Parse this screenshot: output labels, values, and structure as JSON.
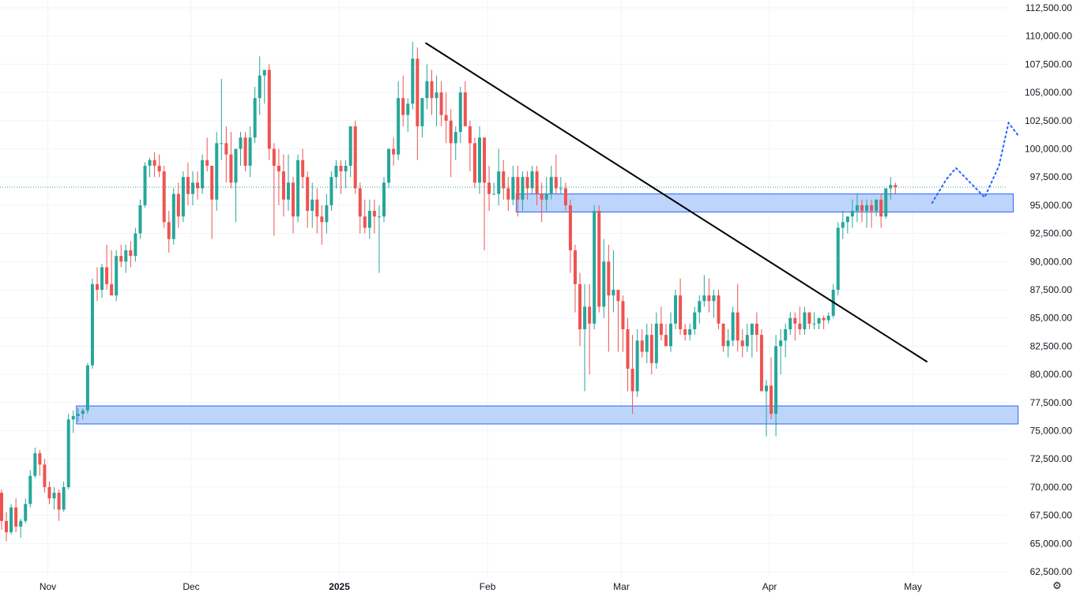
{
  "chart_data": {
    "type": "candlestick",
    "ylim": [
      61500,
      113000
    ],
    "y_ticks": [
      112500,
      110000,
      107500,
      105000,
      102500,
      100000,
      97500,
      95000,
      92500,
      90000,
      87500,
      85000,
      82500,
      80000,
      77500,
      75000,
      72500,
      70000,
      67500,
      65000,
      62500
    ],
    "y_tick_labels": [
      "112,500.00",
      "110,000.00",
      "107,500.00",
      "105,000.00",
      "102,500.00",
      "100,000.00",
      "97,500.00",
      "95,000.00",
      "92,500.00",
      "90,000.00",
      "87,500.00",
      "85,000.00",
      "82,500.00",
      "80,000.00",
      "77,500.00",
      "75,000.00",
      "72,500.00",
      "70,000.00",
      "67,500.00",
      "65,000.00",
      "62,500.00"
    ],
    "x_ticks": [
      {
        "label": "Nov",
        "index": 10,
        "bold": false
      },
      {
        "label": "Dec",
        "index": 40,
        "bold": false
      },
      {
        "label": "2025",
        "index": 71,
        "bold": true
      },
      {
        "label": "Feb",
        "index": 102,
        "bold": false
      },
      {
        "label": "Mar",
        "index": 130,
        "bold": false
      },
      {
        "label": "Apr",
        "index": 161,
        "bold": false
      },
      {
        "label": "May",
        "index": 191,
        "bold": false
      }
    ],
    "last_price": 96600,
    "colors": {
      "up": "#26a69a",
      "down": "#ef5350",
      "zone_fill": "#bbd3fb",
      "zone_border": "#2962ff",
      "trendline": "#000000",
      "projection": "#2962ff",
      "price_line": "#26a69a",
      "grid": "#f0f3fa"
    },
    "candles": [
      [
        69500,
        69800,
        66200,
        67000
      ],
      [
        67000,
        67800,
        65200,
        66000
      ],
      [
        66000,
        68500,
        65800,
        68200
      ],
      [
        68200,
        69000,
        66000,
        66500
      ],
      [
        66500,
        67200,
        65500,
        67000
      ],
      [
        67000,
        69000,
        66800,
        68500
      ],
      [
        68500,
        71500,
        68200,
        71000
      ],
      [
        71000,
        73500,
        70800,
        73000
      ],
      [
        73000,
        73300,
        71000,
        72000
      ],
      [
        72000,
        72500,
        69500,
        70000
      ],
      [
        70000,
        70500,
        68500,
        69000
      ],
      [
        69000,
        70000,
        68000,
        69500
      ],
      [
        69500,
        69800,
        67000,
        68000
      ],
      [
        68000,
        70500,
        67800,
        70000
      ],
      [
        70000,
        76500,
        69800,
        76000
      ],
      [
        76000,
        76800,
        74800,
        76300
      ],
      [
        76300,
        77000,
        75800,
        76500
      ],
      [
        76500,
        77000,
        76000,
        76800
      ],
      [
        76800,
        81000,
        76500,
        80800
      ],
      [
        80800,
        88500,
        80500,
        88000
      ],
      [
        88000,
        89500,
        86500,
        87500
      ],
      [
        87500,
        89800,
        86800,
        89500
      ],
      [
        89500,
        91500,
        87500,
        88000
      ],
      [
        88000,
        91000,
        87000,
        87000
      ],
      [
        87000,
        91000,
        86500,
        90500
      ],
      [
        90500,
        91500,
        89500,
        90000
      ],
      [
        90000,
        91500,
        89000,
        91000
      ],
      [
        91000,
        91800,
        89500,
        90500
      ],
      [
        90500,
        93000,
        90000,
        92500
      ],
      [
        92500,
        95500,
        92000,
        95000
      ],
      [
        95000,
        98800,
        94800,
        98500
      ],
      [
        98500,
        99200,
        97500,
        99000
      ],
      [
        99000,
        99700,
        97500,
        98500
      ],
      [
        98500,
        99500,
        97500,
        98000
      ],
      [
        98000,
        98500,
        93000,
        93500
      ],
      [
        93500,
        94500,
        90800,
        92000
      ],
      [
        92000,
        96500,
        91500,
        96000
      ],
      [
        96000,
        97000,
        93000,
        94000
      ],
      [
        94000,
        98000,
        93500,
        97500
      ],
      [
        97500,
        98800,
        95000,
        96000
      ],
      [
        96000,
        98000,
        95000,
        97000
      ],
      [
        97000,
        98000,
        95500,
        96500
      ],
      [
        96500,
        99500,
        96000,
        99000
      ],
      [
        99000,
        101000,
        98000,
        98500
      ],
      [
        98500,
        98500,
        92000,
        95500
      ],
      [
        95500,
        101500,
        94500,
        100500
      ],
      [
        100500,
        106200,
        99000,
        100500
      ],
      [
        100500,
        102000,
        97000,
        99500
      ],
      [
        99500,
        101500,
        96500,
        97000
      ],
      [
        97000,
        100000,
        93500,
        100000
      ],
      [
        100000,
        101500,
        98500,
        101000
      ],
      [
        101000,
        101500,
        98000,
        98500
      ],
      [
        98500,
        102000,
        97500,
        101000
      ],
      [
        101000,
        105500,
        100500,
        104500
      ],
      [
        104500,
        108200,
        103000,
        106500
      ],
      [
        106500,
        107000,
        104000,
        107000
      ],
      [
        107000,
        107500,
        99000,
        100000
      ],
      [
        100000,
        100500,
        92300,
        98500
      ],
      [
        98500,
        100000,
        95000,
        98000
      ],
      [
        98000,
        99500,
        94000,
        95500
      ],
      [
        95500,
        99500,
        94500,
        97000
      ],
      [
        97000,
        97500,
        92500,
        94000
      ],
      [
        94000,
        99500,
        93500,
        99000
      ],
      [
        99000,
        100000,
        96500,
        97500
      ],
      [
        97500,
        98000,
        93000,
        94500
      ],
      [
        94500,
        97000,
        93000,
        95500
      ],
      [
        95500,
        96500,
        92500,
        94000
      ],
      [
        94000,
        95000,
        91500,
        93500
      ],
      [
        93500,
        96000,
        92500,
        95000
      ],
      [
        95000,
        98000,
        94500,
        97500
      ],
      [
        97500,
        99000,
        96500,
        98500
      ],
      [
        98500,
        99000,
        96000,
        98000
      ],
      [
        98000,
        99000,
        96500,
        98500
      ],
      [
        98500,
        102000,
        97500,
        102000
      ],
      [
        102000,
        102500,
        96000,
        96500
      ],
      [
        96500,
        97000,
        92500,
        94000
      ],
      [
        94000,
        95500,
        92500,
        93000
      ],
      [
        93000,
        95500,
        92000,
        94500
      ],
      [
        94500,
        95500,
        92500,
        94000
      ],
      [
        94000,
        95000,
        89000,
        94000
      ],
      [
        94000,
        97500,
        93500,
        97000
      ],
      [
        97000,
        100000,
        96500,
        100000
      ],
      [
        100000,
        101000,
        98500,
        99500
      ],
      [
        99500,
        106000,
        99000,
        104500
      ],
      [
        104500,
        106500,
        102000,
        103000
      ],
      [
        103000,
        104500,
        101500,
        104000
      ],
      [
        104000,
        109500,
        103500,
        108000
      ],
      [
        108000,
        109000,
        99000,
        102000
      ],
      [
        102000,
        104500,
        101000,
        104500
      ],
      [
        104500,
        107500,
        103500,
        106000
      ],
      [
        106000,
        107000,
        103000,
        104500
      ],
      [
        104500,
        106500,
        102000,
        105000
      ],
      [
        105000,
        106000,
        102000,
        103000
      ],
      [
        103000,
        105000,
        100500,
        102500
      ],
      [
        102500,
        103500,
        97500,
        100500
      ],
      [
        100500,
        102000,
        99000,
        101500
      ],
      [
        101500,
        105500,
        100500,
        105000
      ],
      [
        105000,
        106000,
        102000,
        102000
      ],
      [
        102000,
        102500,
        98000,
        100500
      ],
      [
        100500,
        101000,
        96500,
        97000
      ],
      [
        97000,
        102000,
        96000,
        101000
      ],
      [
        101000,
        101000,
        91000,
        97000
      ],
      [
        97000,
        98500,
        94500,
        96000
      ],
      [
        96000,
        97000,
        96000,
        96000
      ],
      [
        96000,
        100000,
        95000,
        98000
      ],
      [
        98000,
        99000,
        95500,
        96500
      ],
      [
        96500,
        97500,
        94500,
        95500
      ],
      [
        95500,
        98500,
        95000,
        97500
      ],
      [
        97500,
        98500,
        94000,
        95500
      ],
      [
        95500,
        98000,
        94500,
        97500
      ],
      [
        97500,
        98000,
        95500,
        96500
      ],
      [
        96500,
        98500,
        96000,
        98000
      ],
      [
        98000,
        98500,
        95000,
        96000
      ],
      [
        96000,
        97000,
        93500,
        95500
      ],
      [
        95500,
        97500,
        94500,
        96000
      ],
      [
        96000,
        98500,
        95500,
        97500
      ],
      [
        97500,
        99500,
        96000,
        96500
      ],
      [
        96500,
        97500,
        96000,
        96500
      ],
      [
        96500,
        97000,
        94500,
        95000
      ],
      [
        95000,
        95500,
        89000,
        91000
      ],
      [
        91000,
        91500,
        85500,
        88000
      ],
      [
        88000,
        89000,
        82500,
        84000
      ],
      [
        84000,
        88000,
        78500,
        86000
      ],
      [
        86000,
        88000,
        80000,
        84500
      ],
      [
        84500,
        95000,
        84000,
        94500
      ],
      [
        94500,
        95000,
        85500,
        86000
      ],
      [
        86000,
        92000,
        85000,
        90000
      ],
      [
        90000,
        91500,
        82000,
        87000
      ],
      [
        87000,
        91000,
        85500,
        87500
      ],
      [
        87500,
        87500,
        82000,
        86500
      ],
      [
        86500,
        87000,
        82000,
        84000
      ],
      [
        84000,
        85000,
        78500,
        80500
      ],
      [
        80500,
        83500,
        76500,
        78500
      ],
      [
        78500,
        84000,
        78000,
        83000
      ],
      [
        83000,
        84000,
        81500,
        82000
      ],
      [
        82000,
        84500,
        81000,
        83500
      ],
      [
        83500,
        84500,
        80000,
        81000
      ],
      [
        81000,
        85500,
        80500,
        84500
      ],
      [
        84500,
        86000,
        83000,
        83500
      ],
      [
        83500,
        84500,
        82500,
        82500
      ],
      [
        82500,
        85500,
        82000,
        84500
      ],
      [
        84500,
        87500,
        84000,
        87000
      ],
      [
        87000,
        88500,
        83500,
        84000
      ],
      [
        84000,
        84500,
        83000,
        83500
      ],
      [
        83500,
        84500,
        83000,
        84000
      ],
      [
        84000,
        86000,
        83500,
        85500
      ],
      [
        85500,
        87000,
        84500,
        86500
      ],
      [
        86500,
        88800,
        86000,
        87000
      ],
      [
        87000,
        88500,
        85500,
        86500
      ],
      [
        86500,
        87500,
        85000,
        87000
      ],
      [
        87000,
        87500,
        84000,
        84500
      ],
      [
        84500,
        84500,
        82000,
        82500
      ],
      [
        82500,
        84000,
        81500,
        83000
      ],
      [
        83000,
        86000,
        82500,
        85500
      ],
      [
        85500,
        88000,
        82000,
        83000
      ],
      [
        83000,
        84000,
        81500,
        82500
      ],
      [
        82500,
        84500,
        82000,
        83500
      ],
      [
        83500,
        84500,
        81500,
        84500
      ],
      [
        84500,
        85500,
        82000,
        83500
      ],
      [
        83500,
        84000,
        79000,
        78500
      ],
      [
        78500,
        79500,
        74500,
        79000
      ],
      [
        79000,
        81500,
        76000,
        76500
      ],
      [
        76500,
        83500,
        74500,
        82500
      ],
      [
        82500,
        84000,
        80000,
        83000
      ],
      [
        83000,
        84500,
        81500,
        84000
      ],
      [
        84000,
        85500,
        83500,
        85000
      ],
      [
        85000,
        85500,
        83000,
        84500
      ],
      [
        84500,
        86000,
        83500,
        84000
      ],
      [
        84000,
        86000,
        83500,
        85500
      ],
      [
        85500,
        85500,
        84000,
        84500
      ],
      [
        84500,
        85500,
        84000,
        84500
      ],
      [
        84500,
        85000,
        84000,
        85000
      ],
      [
        85000,
        85200,
        84000,
        84800
      ],
      [
        84800,
        85500,
        84500,
        85200
      ],
      [
        85200,
        88000,
        85000,
        87500
      ],
      [
        87500,
        93500,
        87000,
        93000
      ],
      [
        93000,
        94500,
        92000,
        93500
      ],
      [
        93500,
        94000,
        92500,
        94000
      ],
      [
        94000,
        95500,
        93000,
        94500
      ],
      [
        94500,
        96000,
        93500,
        95000
      ],
      [
        95000,
        95500,
        93500,
        94500
      ],
      [
        94500,
        95500,
        93000,
        95000
      ],
      [
        95000,
        95500,
        93000,
        94500
      ],
      [
        94500,
        95500,
        94000,
        95500
      ],
      [
        95500,
        96000,
        93000,
        94000
      ],
      [
        94000,
        96500,
        93800,
        96500
      ],
      [
        96500,
        97500,
        95500,
        96800
      ],
      [
        96800,
        97000,
        96000,
        96600
      ]
    ],
    "zones": [
      {
        "top": 96000,
        "bottom": 94400,
        "start": 108,
        "end": 212
      },
      {
        "top": 77200,
        "bottom": 75600,
        "start": 16,
        "end": 213
      }
    ],
    "trendline": [
      {
        "index": 89,
        "price": 109400
      },
      {
        "index": 194,
        "price": 81100
      }
    ],
    "projection": [
      {
        "index": 195,
        "price": 95200
      },
      {
        "index": 198,
        "price": 97300
      },
      {
        "index": 200,
        "price": 98300
      },
      {
        "index": 203,
        "price": 97000
      },
      {
        "index": 206,
        "price": 95700
      },
      {
        "index": 209,
        "price": 98500
      },
      {
        "index": 211,
        "price": 102300
      },
      {
        "index": 213,
        "price": 101200
      }
    ]
  },
  "ui": {
    "settings_icon": "gear-icon"
  }
}
